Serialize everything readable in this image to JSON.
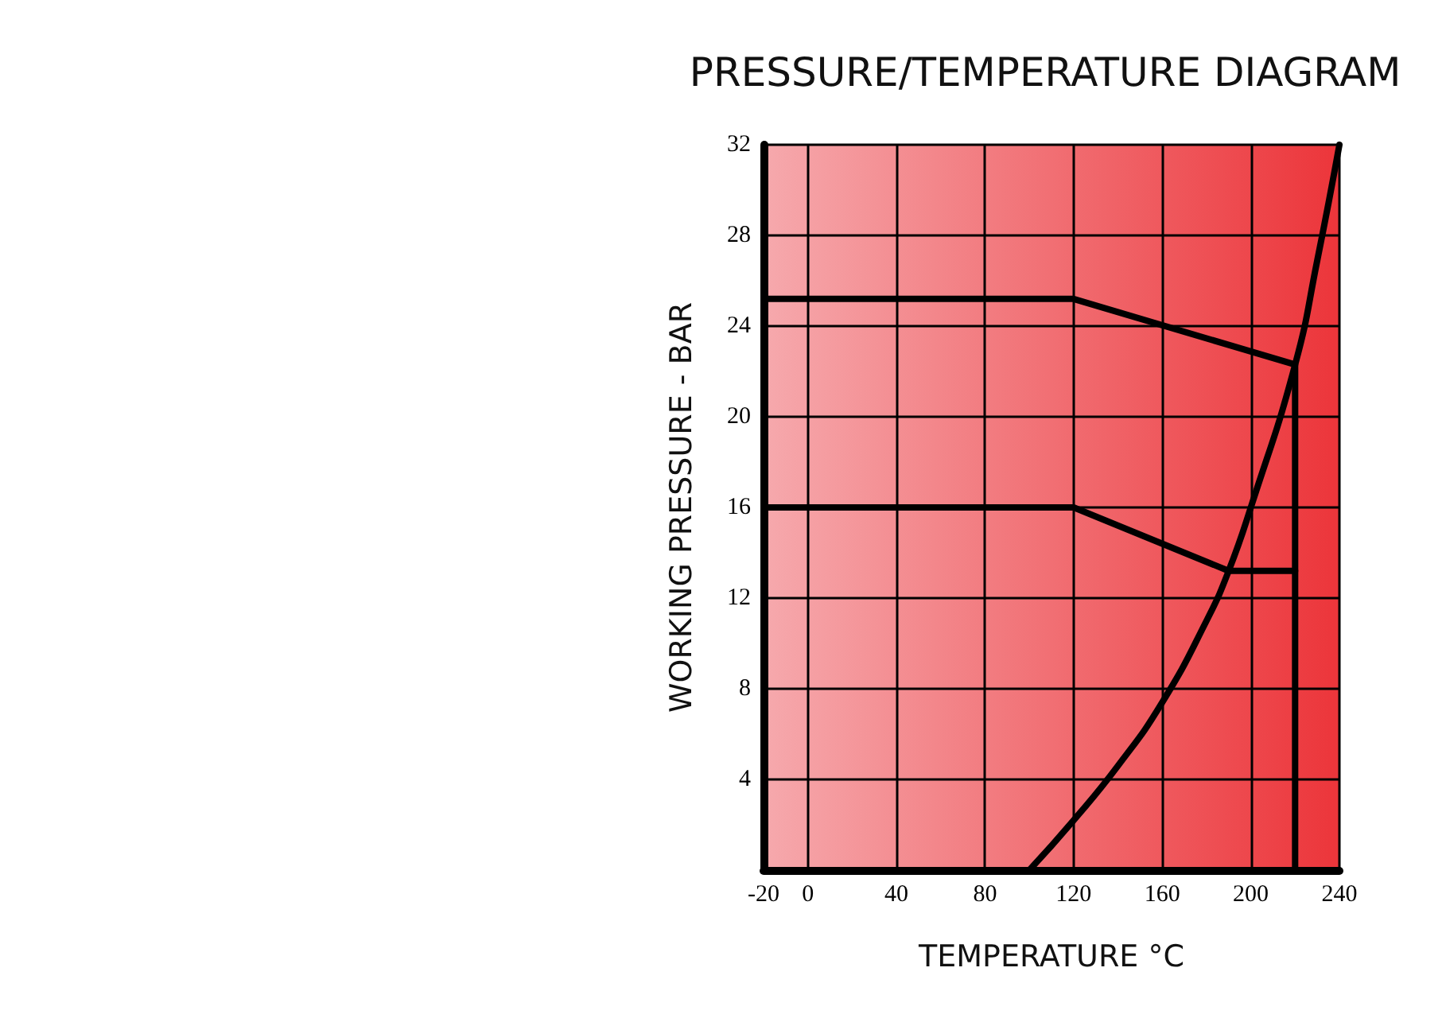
{
  "chart_data": {
    "type": "line",
    "title": "PRESSURE/TEMPERATURE DIAGRAM",
    "xlabel": "TEMPERATURE °C",
    "ylabel": "WORKING PRESSURE - BAR",
    "series": [
      {
        "color": "#000000",
        "x": [
          -20,
          120,
          220,
          220
        ],
        "values": [
          25.2,
          25.2,
          22.3,
          0
        ]
      },
      {
        "color": "#000000",
        "x": [
          -20,
          120,
          190,
          220
        ],
        "values": [
          16,
          16,
          13.2,
          13.2
        ]
      },
      {
        "color": "#000000",
        "x": [
          100,
          120,
          140,
          160,
          180,
          190,
          200,
          220,
          230,
          240
        ],
        "values": [
          0,
          2.2,
          4.6,
          7.4,
          11,
          13.2,
          16,
          22.3,
          26.9,
          32
        ]
      }
    ],
    "xlim": [
      -20,
      240
    ],
    "xticks": [
      -20,
      0,
      40,
      80,
      120,
      160,
      200,
      240
    ],
    "ylim": [
      0,
      32
    ],
    "yticks": [
      {
        "value": 0,
        "label": null
      },
      4,
      8,
      12,
      16,
      20,
      24,
      28,
      32
    ],
    "grid": true,
    "marker": "none",
    "line_style": "solid"
  }
}
